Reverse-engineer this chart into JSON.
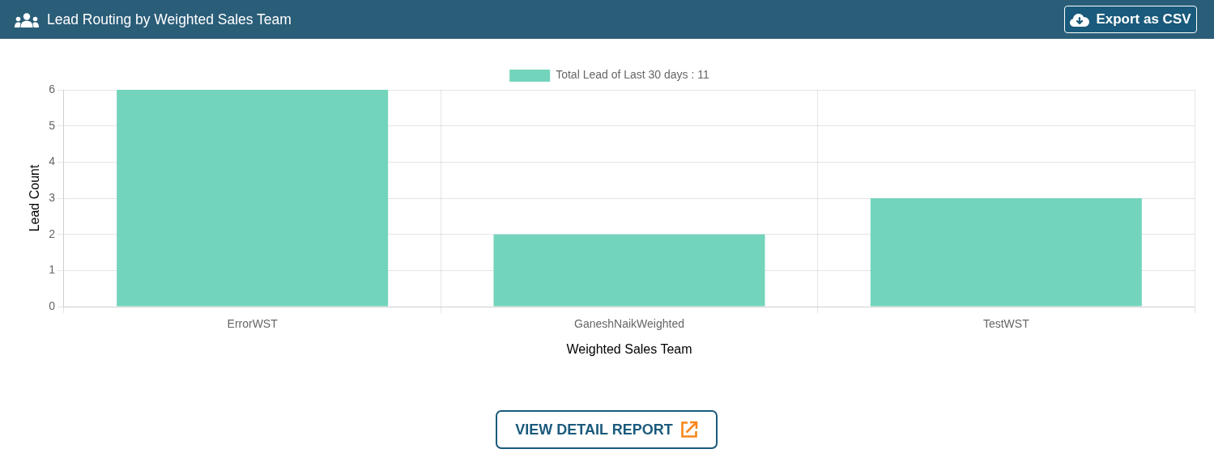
{
  "chart_data": {
    "type": "bar",
    "title": "Lead Routing by Weighted Sales Team",
    "xlabel": "Weighted Sales Team",
    "ylabel": "Lead Count",
    "categories": [
      "ErrorWST",
      "GaneshNaikWeighted",
      "TestWST"
    ],
    "series": [
      {
        "name": "Total Lead of Last 30 days : 11",
        "color": "#73d4bc",
        "values": [
          6,
          2,
          3
        ]
      }
    ],
    "ylim": [
      0,
      6
    ],
    "yticks": [
      0,
      1,
      2,
      3,
      4,
      5,
      6
    ],
    "grid": true,
    "legend": "top",
    "annotations": [
      "Export as CSV",
      "VIEW DETAIL REPORT"
    ]
  }
}
